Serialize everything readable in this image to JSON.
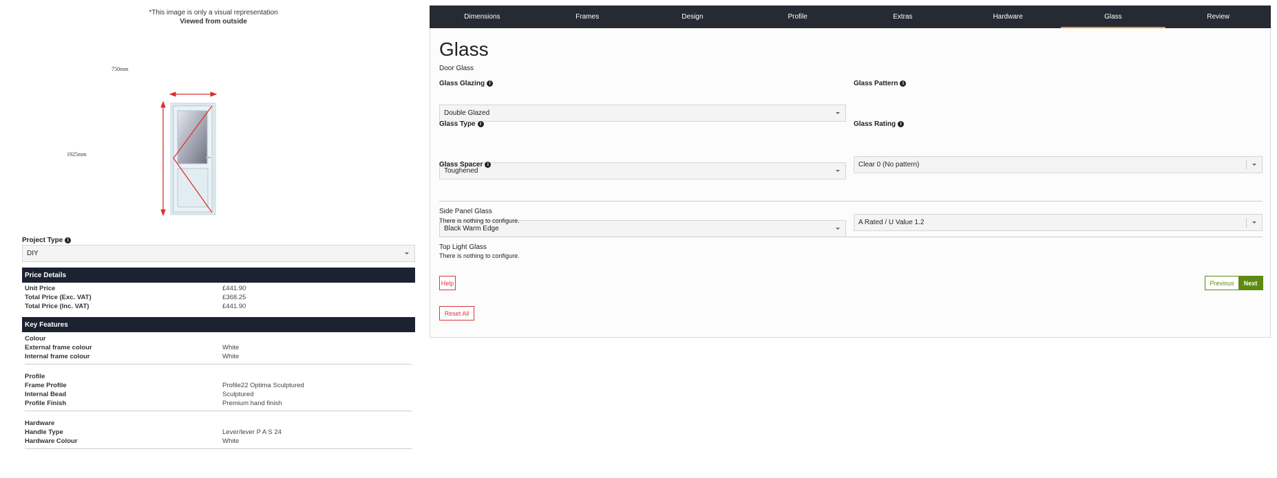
{
  "preview": {
    "disclaimer": "*This image is only a visual representation",
    "view_label": "Viewed from outside",
    "width_label": "750mm",
    "height_label": "1925mm"
  },
  "project_type": {
    "label": "Project Type",
    "value": "DIY"
  },
  "price_details": {
    "title": "Price Details",
    "rows": [
      {
        "k": "Unit Price",
        "v": "£441.90"
      },
      {
        "k": "Total Price (Exc. VAT)",
        "v": "£368.25"
      },
      {
        "k": "Total Price (Inc. VAT)",
        "v": "£441.90"
      }
    ]
  },
  "key_features": {
    "title": "Key Features",
    "groups": [
      {
        "name": "Colour",
        "rows": [
          {
            "k": "External frame colour",
            "v": "White"
          },
          {
            "k": "Internal frame colour",
            "v": "White"
          }
        ]
      },
      {
        "name": "Profile",
        "rows": [
          {
            "k": "Frame Profile",
            "v": "Profile22 Optima Sculptured"
          },
          {
            "k": "Internal Bead",
            "v": "Sculptured"
          },
          {
            "k": "Profile Finish",
            "v": "Premium hand finish"
          }
        ]
      },
      {
        "name": "Hardware",
        "rows": [
          {
            "k": "Handle Type",
            "v": "Lever/lever P A S 24"
          },
          {
            "k": "Hardware Colour",
            "v": "White"
          }
        ]
      }
    ]
  },
  "tabs": [
    "Dimensions",
    "Frames",
    "Design",
    "Profile",
    "Extras",
    "Hardware",
    "Glass",
    "Review"
  ],
  "active_tab": "Glass",
  "main": {
    "title": "Glass",
    "section": "Door Glass",
    "fields": {
      "glazing": {
        "label": "Glass Glazing",
        "value": "Double Glazed"
      },
      "type": {
        "label": "Glass Type",
        "value": "Toughened"
      },
      "spacer": {
        "label": "Glass Spacer",
        "value": "Black Warm Edge"
      },
      "pattern": {
        "label": "Glass Pattern",
        "value": "Clear 0 (No pattern)"
      },
      "rating": {
        "label": "Glass Rating",
        "value": "A Rated / U Value 1.2"
      }
    },
    "side_panel": {
      "title": "Side Panel Glass",
      "text": "There is nothing to configure."
    },
    "top_light": {
      "title": "Top Light Glass",
      "text": "There is nothing to configure."
    },
    "help_label": "Help",
    "previous_label": "Previous",
    "next_label": "Next",
    "reset_label": "Reset All"
  },
  "colors": {
    "accent": "#f0902a",
    "nav_bg": "#252a33",
    "next_green": "#5e8a12",
    "danger": "#d9363e"
  }
}
